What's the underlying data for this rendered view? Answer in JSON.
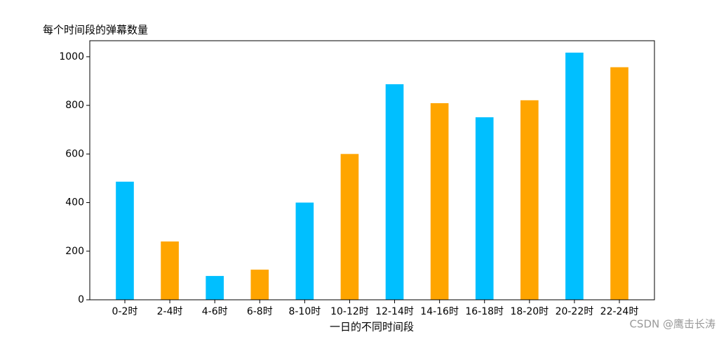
{
  "chart_data": {
    "type": "bar",
    "title": "每个时间段的弹幕数量",
    "x_label": "一日的不同时间段",
    "categories": [
      "0-2时",
      "2-4时",
      "4-6时",
      "6-8时",
      "8-10时",
      "10-12时",
      "12-14时",
      "14-16时",
      "16-18时",
      "18-20时",
      "20-22时",
      "22-24时"
    ],
    "values": [
      486,
      240,
      98,
      124,
      400,
      600,
      887,
      809,
      751,
      821,
      1017,
      957
    ],
    "colors": [
      "#00bfff",
      "#ffa500",
      "#00bfff",
      "#ffa500",
      "#00bfff",
      "#ffa500",
      "#00bfff",
      "#ffa500",
      "#00bfff",
      "#ffa500",
      "#00bfff",
      "#ffa500"
    ],
    "ylim": [
      0,
      1066
    ],
    "yticks": [
      0,
      200,
      400,
      600,
      800,
      1000
    ],
    "grid": false
  },
  "watermark": "CSDN @鹰击长涛"
}
